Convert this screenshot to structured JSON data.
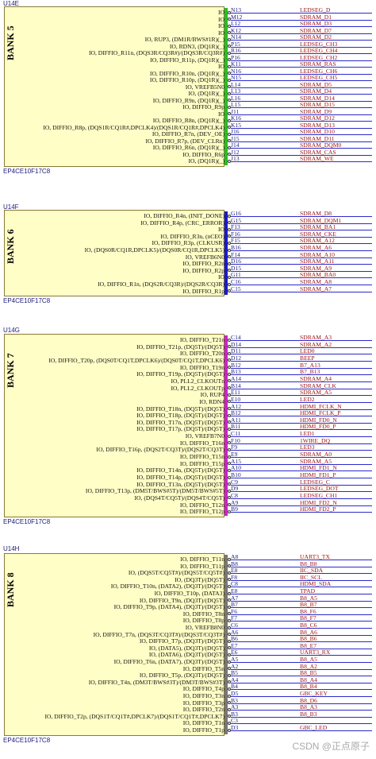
{
  "banks": [
    {
      "part": "U14E",
      "label": "BANK 5",
      "ref": "EP4CE10F17C8",
      "bar_color": "#22c022",
      "pins": [
        {
          "fn": "IO",
          "pin": "N13",
          "net": "LEDSEG_D"
        },
        {
          "fn": "IO",
          "pin": "M12",
          "net": "SDRAM_D1"
        },
        {
          "fn": "IO",
          "pin": "L12",
          "net": "SDRAM_D3"
        },
        {
          "fn": "IO",
          "pin": "K12",
          "net": "SDRAM_D7"
        },
        {
          "fn": "IO, RUP3, (DM1R/BWS#1R)(_)",
          "pin": "N14",
          "net": "SDRAM_D2"
        },
        {
          "fn": "IO, RDN3, (DQ1R)(_)",
          "pin": "P15",
          "net": "LEDSEG_CH3"
        },
        {
          "fn": "IO, DIFFIO_R11n, (DQS3R/CQ3R#)/(DQS3R/CQ3R#)",
          "pin": "R16",
          "net": "LEDSEG_CH4"
        },
        {
          "fn": "IO, DIFFIO_R11p, (DQ1R)(_)",
          "pin": "P16",
          "net": "LEDSEG_CH2"
        },
        {
          "fn": "IO",
          "pin": "K11",
          "net": "SDRAM_RAS"
        },
        {
          "fn": "IO, DIFFIO_R10n, (DQ1R)(_)",
          "pin": "N16",
          "net": "LEDSEG_CH6"
        },
        {
          "fn": "IO, DIFFIO_R10p, (DQ1R)(_)",
          "pin": "N15",
          "net": "LEDSEG_CH5"
        },
        {
          "fn": "IO, VREFB5N0",
          "pin": "L14",
          "net": "SDRAM_D5"
        },
        {
          "fn": "IO, (DQ1R)(_)",
          "pin": "L13",
          "net": "SDRAM_D4"
        },
        {
          "fn": "IO, DIFFIO_R9n, (DQ1R)(_)",
          "pin": "L16",
          "net": "SDRAM_D14"
        },
        {
          "fn": "IO, DIFFIO_R9p",
          "pin": "L15",
          "net": "SDRAM_D15"
        },
        {
          "fn": "IO",
          "pin": "J11",
          "net": "SDRAM_D9"
        },
        {
          "fn": "IO, DIFFIO_R8n, (DQ1R)(_)",
          "pin": "K16",
          "net": "SDRAM_D12"
        },
        {
          "fn": "IO, DIFFIO_R8p, (DQS1R/CQ1R#,DPCLK4)/(DQS1R/CQ1R#,DPCLK4)",
          "pin": "K15",
          "net": "SDRAM_D13"
        },
        {
          "fn": "IO, DIFFIO_R7n, (DEV_OE)",
          "pin": "J16",
          "net": "SDRAM_D10"
        },
        {
          "fn": "IO, DIFFIO_R7p, (DEV_CLRn)",
          "pin": "J15",
          "net": "SDRAM_D11"
        },
        {
          "fn": "IO, DIFFIO_R6n, (DQ1R)(_)",
          "pin": "J14",
          "net": "SDRAM_DQM0"
        },
        {
          "fn": "IO, DIFFIO_R6p",
          "pin": "J12",
          "net": "SDRAM_CAS"
        },
        {
          "fn": "IO, (DQ1R)(_)",
          "pin": "J13",
          "net": "SDRAM_WE"
        }
      ]
    },
    {
      "part": "U14F",
      "label": "BANK 6",
      "ref": "EP4CE10F17C8",
      "bar_color": "#1a1acc",
      "pins": [
        {
          "fn": "IO, DIFFIO_R4n, (INIT_DONE)",
          "pin": "G16",
          "net": "SDRAM_D8"
        },
        {
          "fn": "IO, DIFFIO_R4p, (CRC_ERROR)",
          "pin": "G15",
          "net": "SDRAM_DQM1"
        },
        {
          "fn": "IO",
          "pin": "F13",
          "net": "SDRAM_BA1"
        },
        {
          "fn": "IO, DIFFIO_R3n, (nCEO)",
          "pin": "F16",
          "net": "SDRAM_CKE"
        },
        {
          "fn": "IO, DIFFIO_R3p, (CLKUSR)",
          "pin": "F15",
          "net": "SDRAM_A12"
        },
        {
          "fn": "IO, (DQS0R/CQ1R,DPCLK5)/(DQS0R/CQ1R,DPCLK5)",
          "pin": "B16",
          "net": "SDRAM_A6"
        },
        {
          "fn": "IO, VREFB6N0",
          "pin": "F14",
          "net": "SDRAM_A10"
        },
        {
          "fn": "IO, DIFFIO_R2n",
          "pin": "D16",
          "net": "SDRAM_A11"
        },
        {
          "fn": "IO, DIFFIO_R2p",
          "pin": "D15",
          "net": "SDRAM_A9"
        },
        {
          "fn": "IO",
          "pin": "G11",
          "net": "SDRAM_BA0"
        },
        {
          "fn": "IO, DIFFIO_R1n, (DQS2R/CQ3R)/(DQS2R/CQ3R)",
          "pin": "C16",
          "net": "SDRAM_A8"
        },
        {
          "fn": "IO, DIFFIO_R1p",
          "pin": "C15",
          "net": "SDRAM_A7"
        }
      ]
    },
    {
      "part": "U14G",
      "label": "BANK 7",
      "ref": "EP4CE10F17C8",
      "bar_color": "#cc22cc",
      "pins": [
        {
          "fn": "IO, DIFFIO_T21n",
          "pin": "C14",
          "net": "SDRAM_A3"
        },
        {
          "fn": "IO, DIFFIO_T21p, (DQ5T)/(DQ5T)",
          "pin": "D14",
          "net": "SDRAM_A2"
        },
        {
          "fn": "IO, DIFFIO_T20n",
          "pin": "D11",
          "net": "LED0"
        },
        {
          "fn": "IO, DIFFIO_T20p, (DQS0T/CQ1T,DPCLK6)/(DQS0T/CQ1T,DPCLK6)",
          "pin": "D12",
          "net": "BEEP"
        },
        {
          "fn": "IO, DIFFIO_T19n",
          "pin": "B12",
          "net": "B7_A13"
        },
        {
          "fn": "IO, DIFFIO_T19p, (DQ5T)/(DQ5T)",
          "pin": "B13",
          "net": "B7_B13"
        },
        {
          "fn": "IO, PLL2_CLKOUTn",
          "pin": "A14",
          "net": "SDRAM_A4"
        },
        {
          "fn": "IO, PLL2_CLKOUTp",
          "pin": "B14",
          "net": "SDRAM_CLK"
        },
        {
          "fn": "IO, RUP4",
          "pin": "E11",
          "net": "SDRAM_A5"
        },
        {
          "fn": "IO, RDN4",
          "pin": "E10",
          "net": "LED2"
        },
        {
          "fn": "IO, DIFFIO_T18n, (DQ5T)/(DQ5T)",
          "pin": "A12",
          "net": "HDMI_FCLK_N"
        },
        {
          "fn": "IO, DIFFIO_T18p, (DQ5T)/(DQ5T)",
          "pin": "B12",
          "net": "HDMI_FCLK_P"
        },
        {
          "fn": "IO, DIFFIO_T17n, (DQ5T)/(DQ5T)",
          "pin": "A11",
          "net": "HDMI_FD0_N"
        },
        {
          "fn": "IO, DIFFIO_T17p, (DQ5T)/(DQ5T)",
          "pin": "B11",
          "net": "HDMI_FD0_P"
        },
        {
          "fn": "IO, VREFB7N0",
          "pin": "C11",
          "net": "LED1"
        },
        {
          "fn": "IO, DIFFIO_T16n",
          "pin": "F10",
          "net": "1WIRE_DQ"
        },
        {
          "fn": "IO, DIFFIO_T16p, (DQS2T/CQ3T)/(DQS2T/CQ3T)",
          "pin": "F9",
          "net": "LED3"
        },
        {
          "fn": "IO, DIFFIO_T15n",
          "pin": "E9",
          "net": "SDRAM_A0"
        },
        {
          "fn": "IO, DIFFIO_T15p",
          "pin": "A15",
          "net": "SDRAM_A5"
        },
        {
          "fn": "IO, DIFFIO_T14n, (DQ5T)/(DQ5T)",
          "pin": "A10",
          "net": "HDMI_FD1_N"
        },
        {
          "fn": "IO, DIFFIO_T14p, (DQ5T)/(DQ5T)",
          "pin": "B10",
          "net": "HDMI_FD1_P"
        },
        {
          "fn": "IO, DIFFIO_T13n, (DQ5T)/(DQ5T)",
          "pin": "C9",
          "net": "LEDSEG_C"
        },
        {
          "fn": "IO, DIFFIO_T13p, (DM5T/BWS#5T)/(DM5T/BWS#5T)",
          "pin": "D9",
          "net": "LEDSEG_DOT"
        },
        {
          "fn": "IO, (DQS4T/CQ5T)/(DQS4T/CQ5T)",
          "pin": "C8",
          "net": "LEDSEG_CH1"
        },
        {
          "fn": "IO, DIFFIO_T12n",
          "pin": "A9",
          "net": "HDMI_FD2_N"
        },
        {
          "fn": "IO, DIFFIO_T12p",
          "pin": "B9",
          "net": "HDMI_FD2_P"
        }
      ]
    },
    {
      "part": "U14H",
      "label": "BANK 8",
      "ref": "EP4CE10F17C8",
      "bar_color": "#777777",
      "pins": [
        {
          "fn": "IO, DIFFIO_T11n",
          "pin": "A8",
          "net": "UART3_TX"
        },
        {
          "fn": "IO, DIFFIO_T11p",
          "pin": "B8",
          "net": "B8_B8"
        },
        {
          "fn": "IO, (DQS5T/CQ5T#)/(DQS5T/CQ5T#)",
          "pin": "E8",
          "net": "IIC_SDA"
        },
        {
          "fn": "IO, (DQ3T)/(DQ5T)",
          "pin": "F8",
          "net": "IIC_SCL"
        },
        {
          "fn": "IO, DIFFIO_T10n, (DATA2), (DQ3T)/(DQ5T)",
          "pin": "C8",
          "net": "HDMI_SDA"
        },
        {
          "fn": "IO, DIFFIO_T10p, (DATA3)",
          "pin": "E8",
          "net": "TPAD"
        },
        {
          "fn": "IO, DIFFIO_T9n, (DQ3T)/(DQ5T)",
          "pin": "A7",
          "net": "B8_A5"
        },
        {
          "fn": "IO, DIFFIO_T9p, (DATA4), (DQ3T)/(DQ5T)",
          "pin": "B7",
          "net": "B8_B7"
        },
        {
          "fn": "IO, DIFFIO_T8n",
          "pin": "F6",
          "net": "B8_F6"
        },
        {
          "fn": "IO, DIFFIO_T8p",
          "pin": "F7",
          "net": "B8_F7"
        },
        {
          "fn": "IO, VREFB8N0",
          "pin": "C6",
          "net": "B8_C6"
        },
        {
          "fn": "IO, DIFFIO_T7n, (DQS3T/CQ3T#)/(DQS3T/CQ3T#)",
          "pin": "A6",
          "net": "B8_A6"
        },
        {
          "fn": "IO, DIFFIO_T7p, (DQ3T)/(DQ5T)",
          "pin": "B6",
          "net": "B8_B6"
        },
        {
          "fn": "IO, (DATA5), (DQ3T)/(DQ5T)",
          "pin": "E7",
          "net": "B8_E7"
        },
        {
          "fn": "IO, (DATA6), (DQ3T)/(DQ5T)",
          "pin": "E6",
          "net": "UART3_RX"
        },
        {
          "fn": "IO, DIFFIO_T6n, (DATA7), (DQ3T)/(DQ5T)",
          "pin": "A5",
          "net": "B8_A5"
        },
        {
          "fn": "IO, DIFFIO_T5n",
          "pin": "A2",
          "net": "B8_A2"
        },
        {
          "fn": "IO, DIFFIO_T5p, (DQ3T)/(DQ5T)",
          "pin": "B5",
          "net": "B8_B5"
        },
        {
          "fn": "IO, DIFFIO_T4n, (DM3T/BWS#3T)/(DM3T/BWS#3T)",
          "pin": "A4",
          "net": "B8_A4"
        },
        {
          "fn": "IO, DIFFIO_T4p",
          "pin": "B4",
          "net": "B8_B4"
        },
        {
          "fn": "IO, DIFFIO_T3n",
          "pin": "D5",
          "net": "GBC_KEY"
        },
        {
          "fn": "IO, DIFFIO_T3p",
          "pin": "B3",
          "net": "B8_D6"
        },
        {
          "fn": "IO, DIFFIO_T2n",
          "pin": "A3",
          "net": "B8_A3"
        },
        {
          "fn": "IO, DIFFIO_T2p, (DQS1T/CQ1T#,DPCLK7)/(DQS1T/CQ1T#,DPCLK7)",
          "pin": "B3",
          "net": "B8_B3"
        },
        {
          "fn": "IO, DIFFIO_T1n",
          "pin": "C3",
          "net": ""
        },
        {
          "fn": "IO, DIFFIO_T1p",
          "pin": "D3",
          "net": "GBC_LED"
        }
      ]
    }
  ],
  "watermark": "CSDN @正点原子"
}
